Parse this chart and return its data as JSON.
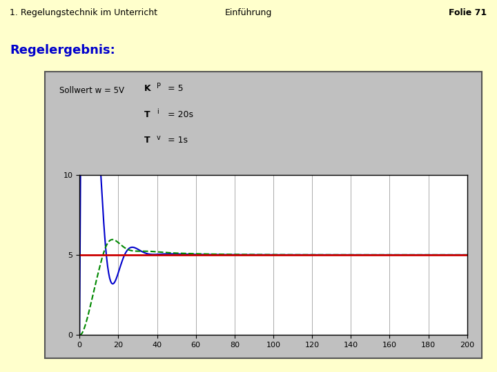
{
  "title_left": "1. Regelungstechnik im Unterricht",
  "title_center": "Einführung",
  "title_right": "Folie 71",
  "header_bg": "#ffffcc",
  "section_title": "Regelergebnis:",
  "section_color": "#0000cc",
  "panel_bg": "#c0c0c0",
  "plot_bg": "#ffffff",
  "sollwert_label": "Sollwert w = 5V",
  "param_label": "KP = 5\nTi = 20s\nTv = 1s",
  "setpoint": 5,
  "KP": 5,
  "Ti": 20,
  "Tv": 1,
  "xlim": [
    0,
    200
  ],
  "ylim": [
    0,
    10
  ],
  "xticks": [
    0,
    20,
    40,
    60,
    80,
    100,
    120,
    140,
    160,
    180,
    200
  ],
  "yticks": [
    0,
    5,
    10
  ],
  "setpoint_color": "#cc0000",
  "blue_color": "#0000cc",
  "green_color": "#008800"
}
